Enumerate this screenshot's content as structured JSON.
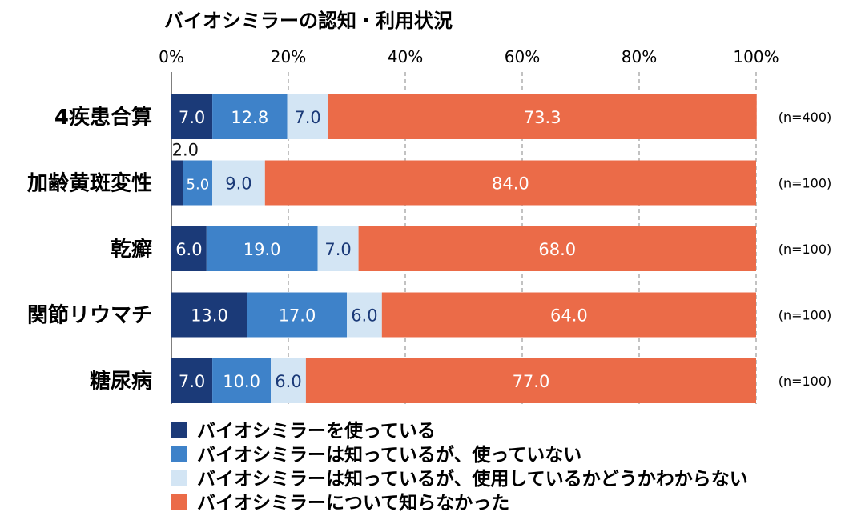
{
  "chart_data": {
    "type": "bar",
    "orientation": "horizontal",
    "stacked": true,
    "title": "バイオシミラーの認知・利用状況",
    "xlim": [
      0,
      100
    ],
    "x_ticks": [
      "0%",
      "20%",
      "40%",
      "60%",
      "80%",
      "100%"
    ],
    "grid": true,
    "legend_position": "bottom",
    "categories": [
      "4疾患合算",
      "加齢黄斑変性",
      "乾癬",
      "関節リウマチ",
      "糖尿病"
    ],
    "n_labels": [
      "(n=400)",
      "(n=100)",
      "(n=100)",
      "(n=100)",
      "(n=100)"
    ],
    "series": [
      {
        "name": "バイオシミラーを使っている",
        "color": "#1b3a78",
        "label_color": "#ffffff",
        "values": [
          7.0,
          2.0,
          6.0,
          13.0,
          7.0
        ],
        "labels": [
          "7.0",
          "2.0",
          "6.0",
          "13.0",
          "7.0"
        ]
      },
      {
        "name": "バイオシミラーは知っているが、使っていない",
        "color": "#3e82c9",
        "label_color": "#ffffff",
        "values": [
          12.8,
          5.0,
          19.0,
          17.0,
          10.0
        ],
        "labels": [
          "12.8",
          "5.0",
          "19.0",
          "17.0",
          "10.0"
        ]
      },
      {
        "name": "バイオシミラーは知っているが、使用しているかどうかわからない",
        "color": "#d3e5f4",
        "label_color": "#1b3a78",
        "values": [
          7.0,
          9.0,
          7.0,
          6.0,
          6.0
        ],
        "labels": [
          "7.0",
          "9.0",
          "7.0",
          "6.0",
          "6.0"
        ]
      },
      {
        "name": "バイオシミラーについて知らなかった",
        "color": "#eb6b48",
        "label_color": "#ffffff",
        "values": [
          73.3,
          84.0,
          68.0,
          64.0,
          77.0
        ],
        "labels": [
          "73.3",
          "84.0",
          "68.0",
          "64.0",
          "77.0"
        ]
      }
    ]
  }
}
